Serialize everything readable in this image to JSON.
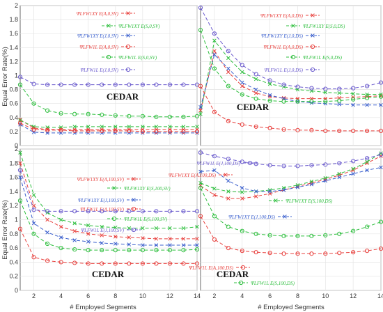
{
  "figure": {
    "ylabel": "Equal Error Rate(%)",
    "xlabel": "# Employed Segments"
  },
  "chart_data": [
    {
      "id": "tl",
      "type": "line",
      "title": "CEDAR",
      "xlim": [
        1,
        14
      ],
      "ylim": [
        0,
        2
      ],
      "xticks": [
        2,
        4,
        6,
        8,
        10,
        12,
        14
      ],
      "yticks": [
        0,
        0.2,
        0.4,
        0.6,
        0.8,
        1,
        1.2,
        1.4,
        1.6,
        1.8,
        2
      ],
      "yticklabels": [
        "0",
        "0.2",
        "0.4",
        "0.6",
        "0.8",
        "1",
        "1.2",
        "1.4",
        "1.6",
        "1.8",
        "2"
      ],
      "grid": true,
      "x": [
        1,
        2,
        3,
        4,
        5,
        6,
        7,
        8,
        9,
        10,
        11,
        12,
        13,
        14
      ],
      "series": [
        {
          "legend": "ΨLFW1XY E(A,0,SV)",
          "marker": "x",
          "color": "#e8413e",
          "values": [
            0.37,
            0.25,
            0.23,
            0.23,
            0.23,
            0.23,
            0.23,
            0.23,
            0.23,
            0.23,
            0.23,
            0.23,
            0.23,
            0.23
          ]
        },
        {
          "legend": "ΨLFW1XY E(S,0,SV)",
          "marker": "x",
          "color": "#2fbf3f",
          "values": [
            0.36,
            0.27,
            0.26,
            0.26,
            0.27,
            0.27,
            0.27,
            0.27,
            0.27,
            0.27,
            0.27,
            0.27,
            0.27,
            0.27
          ]
        },
        {
          "legend": "ΨLFW1XY E(J,0,SV)",
          "marker": "x",
          "color": "#3a5fcd",
          "values": [
            0.3,
            0.19,
            0.18,
            0.18,
            0.18,
            0.18,
            0.18,
            0.18,
            0.18,
            0.18,
            0.18,
            0.18,
            0.18,
            0.18
          ]
        },
        {
          "legend": "ΨLFW1L E(A,0,SV)",
          "marker": "o",
          "color": "#e8413e",
          "values": [
            0.32,
            0.23,
            0.22,
            0.22,
            0.21,
            0.21,
            0.21,
            0.21,
            0.21,
            0.2,
            0.2,
            0.2,
            0.2,
            0.2
          ]
        },
        {
          "legend": "ΨLFW1L E(S,0,SV)",
          "marker": "o",
          "color": "#2fbf3f",
          "values": [
            0.87,
            0.6,
            0.5,
            0.46,
            0.45,
            0.45,
            0.44,
            0.43,
            0.42,
            0.42,
            0.41,
            0.41,
            0.41,
            0.42
          ]
        },
        {
          "legend": "ΨLFW1L E(J,0,SV)",
          "marker": "o",
          "color": "#6a5acd",
          "values": [
            0.98,
            0.88,
            0.87,
            0.87,
            0.87,
            0.87,
            0.87,
            0.87,
            0.87,
            0.87,
            0.87,
            0.87,
            0.87,
            0.87
          ]
        }
      ]
    },
    {
      "id": "tr",
      "type": "line",
      "title": "CEDAR",
      "xlim": [
        1,
        14
      ],
      "ylim": [
        0,
        2
      ],
      "xticks": [
        2,
        4,
        6,
        8,
        10,
        12,
        14
      ],
      "yticks": [
        0,
        0.2,
        0.4,
        0.6,
        0.8,
        1,
        1.2,
        1.4,
        1.6,
        1.8,
        2
      ],
      "grid": true,
      "x": [
        1,
        2,
        3,
        4,
        5,
        6,
        7,
        8,
        9,
        10,
        11,
        12,
        13,
        14
      ],
      "series": [
        {
          "legend": "ΨLFW1XY E(A,0,DS)",
          "marker": "x",
          "color": "#e8413e",
          "values": [
            0.5,
            1.35,
            1.05,
            0.85,
            0.75,
            0.7,
            0.68,
            0.67,
            0.67,
            0.67,
            0.68,
            0.69,
            0.7,
            0.71
          ]
        },
        {
          "legend": "ΨLFW1XY E(S,0,DS)",
          "marker": "x",
          "color": "#2fbf3f",
          "values": [
            0.45,
            1.5,
            1.25,
            1.05,
            0.95,
            0.88,
            0.84,
            0.8,
            0.78,
            0.76,
            0.75,
            0.74,
            0.73,
            0.73
          ]
        },
        {
          "legend": "ΨLFW1XY E(J,0,DS)",
          "marker": "x",
          "color": "#3a5fcd",
          "values": [
            0.55,
            1.3,
            1.1,
            0.9,
            0.8,
            0.72,
            0.67,
            0.63,
            0.61,
            0.6,
            0.59,
            0.58,
            0.58,
            0.58
          ]
        },
        {
          "legend": "ΨLFW1L E(A,0,DS)",
          "marker": "o",
          "color": "#e8413e",
          "values": [
            0.85,
            0.48,
            0.35,
            0.3,
            0.27,
            0.25,
            0.23,
            0.22,
            0.22,
            0.21,
            0.21,
            0.21,
            0.21,
            0.21
          ]
        },
        {
          "legend": "ΨLFW1L E(S,0,DS)",
          "marker": "o",
          "color": "#2fbf3f",
          "values": [
            1.65,
            1.1,
            0.85,
            0.73,
            0.67,
            0.64,
            0.63,
            0.63,
            0.63,
            0.63,
            0.64,
            0.66,
            0.68,
            0.7
          ]
        },
        {
          "legend": "ΨLFW1L E(J,0,DS)",
          "marker": "o",
          "color": "#6a5acd",
          "values": [
            1.97,
            1.6,
            1.35,
            1.15,
            1.02,
            0.93,
            0.87,
            0.84,
            0.82,
            0.81,
            0.81,
            0.82,
            0.85,
            0.9
          ]
        }
      ]
    },
    {
      "id": "bl",
      "type": "line",
      "title": "CEDAR",
      "xlim": [
        1,
        14
      ],
      "ylim": [
        0,
        2
      ],
      "xticks": [
        2,
        4,
        6,
        8,
        10,
        12,
        14
      ],
      "yticks": [
        0,
        0.2,
        0.4,
        0.6,
        0.8,
        1,
        1.2,
        1.4,
        1.6,
        1.8,
        2
      ],
      "yticklabels": [
        "0",
        "0.2",
        "0.4",
        "0.6",
        "0.8",
        "1",
        "1.2",
        "1.4",
        "1.6",
        "1.8",
        "2"
      ],
      "grid": true,
      "x": [
        1,
        2,
        3,
        4,
        5,
        6,
        7,
        8,
        9,
        10,
        11,
        12,
        13,
        14
      ],
      "series": [
        {
          "legend": "ΨLFW1XY E(A,100,SV)",
          "marker": "x",
          "color": "#e8413e",
          "values": [
            1.8,
            1.2,
            1.0,
            0.9,
            0.84,
            0.8,
            0.78,
            0.76,
            0.75,
            0.74,
            0.73,
            0.73,
            0.73,
            0.73
          ]
        },
        {
          "legend": "ΨLFW1XY E(S,100,SV)",
          "marker": "x",
          "color": "#2fbf3f",
          "values": [
            1.95,
            1.35,
            1.1,
            1.0,
            0.95,
            0.92,
            0.9,
            0.89,
            0.88,
            0.88,
            0.88,
            0.88,
            0.88,
            0.9
          ]
        },
        {
          "legend": "ΨLFW1XY E(J,100,SV)",
          "marker": "x",
          "color": "#3a5fcd",
          "values": [
            1.6,
            0.95,
            0.82,
            0.75,
            0.71,
            0.69,
            0.67,
            0.66,
            0.65,
            0.64,
            0.64,
            0.64,
            0.64,
            0.64
          ]
        },
        {
          "legend": "ΨLFW1L E(A,100,SV)",
          "marker": "o",
          "color": "#e8413e",
          "values": [
            0.87,
            0.47,
            0.42,
            0.4,
            0.39,
            0.38,
            0.38,
            0.38,
            0.38,
            0.38,
            0.38,
            0.38,
            0.38,
            0.38
          ]
        },
        {
          "legend": "ΨLFW1L E(S,100,SV)",
          "marker": "o",
          "color": "#2fbf3f",
          "values": [
            1.27,
            0.8,
            0.66,
            0.6,
            0.58,
            0.57,
            0.57,
            0.57,
            0.57,
            0.57,
            0.57,
            0.57,
            0.57,
            0.58
          ]
        },
        {
          "legend": "ΨLFW1L E(J,100,SV)",
          "marker": "o",
          "color": "#6a5acd",
          "values": [
            1.7,
            1.14,
            1.12,
            1.12,
            1.12,
            1.12,
            1.12,
            1.12,
            1.12,
            1.12,
            1.12,
            1.12,
            1.12,
            1.12
          ]
        }
      ]
    },
    {
      "id": "br",
      "type": "line",
      "title": "CEDAR",
      "xlim": [
        1,
        14
      ],
      "ylim": [
        0,
        2
      ],
      "xticks": [
        2,
        4,
        6,
        8,
        10,
        12,
        14
      ],
      "yticks": [
        0,
        0.2,
        0.4,
        0.6,
        0.8,
        1,
        1.2,
        1.4,
        1.6,
        1.8,
        2
      ],
      "grid": true,
      "x": [
        1,
        2,
        3,
        4,
        5,
        6,
        7,
        8,
        9,
        10,
        11,
        12,
        13,
        14
      ],
      "series": [
        {
          "legend": "ΨLFW1XY E(A,100,DS)",
          "marker": "x",
          "color": "#e8413e",
          "values": [
            1.48,
            1.35,
            1.3,
            1.3,
            1.33,
            1.37,
            1.42,
            1.47,
            1.52,
            1.57,
            1.63,
            1.7,
            1.8,
            1.9
          ]
        },
        {
          "legend": "ΨLFW1XY E(S,100,DS)",
          "marker": "x",
          "color": "#2fbf3f",
          "values": [
            1.52,
            1.44,
            1.4,
            1.39,
            1.4,
            1.42,
            1.45,
            1.49,
            1.54,
            1.59,
            1.65,
            1.72,
            1.82,
            1.94
          ]
        },
        {
          "legend": "ΨLFW1XY E(J,100,DS)",
          "marker": "x",
          "color": "#3a5fcd",
          "values": [
            1.68,
            1.7,
            1.55,
            1.45,
            1.4,
            1.4,
            1.42,
            1.46,
            1.5,
            1.55,
            1.6,
            1.65,
            1.7,
            1.74
          ]
        },
        {
          "legend": "ΨLFW1L E(A,100,DS)",
          "marker": "o",
          "color": "#e8413e",
          "values": [
            1.05,
            0.72,
            0.6,
            0.56,
            0.54,
            0.53,
            0.52,
            0.52,
            0.52,
            0.52,
            0.53,
            0.54,
            0.56,
            0.59
          ]
        },
        {
          "legend": "ΨLFW1L E(S,100,DS)",
          "marker": "o",
          "color": "#2fbf3f",
          "values": [
            1.45,
            1.05,
            0.9,
            0.84,
            0.8,
            0.78,
            0.77,
            0.77,
            0.77,
            0.78,
            0.8,
            0.84,
            0.9,
            0.97
          ]
        },
        {
          "legend": "ΨLFW1L E(J,100,DS)",
          "marker": "o",
          "color": "#6a5acd",
          "values": [
            1.95,
            1.9,
            1.86,
            1.82,
            1.79,
            1.77,
            1.76,
            1.76,
            1.77,
            1.78,
            1.8,
            1.83,
            1.87,
            1.92
          ]
        }
      ]
    }
  ]
}
